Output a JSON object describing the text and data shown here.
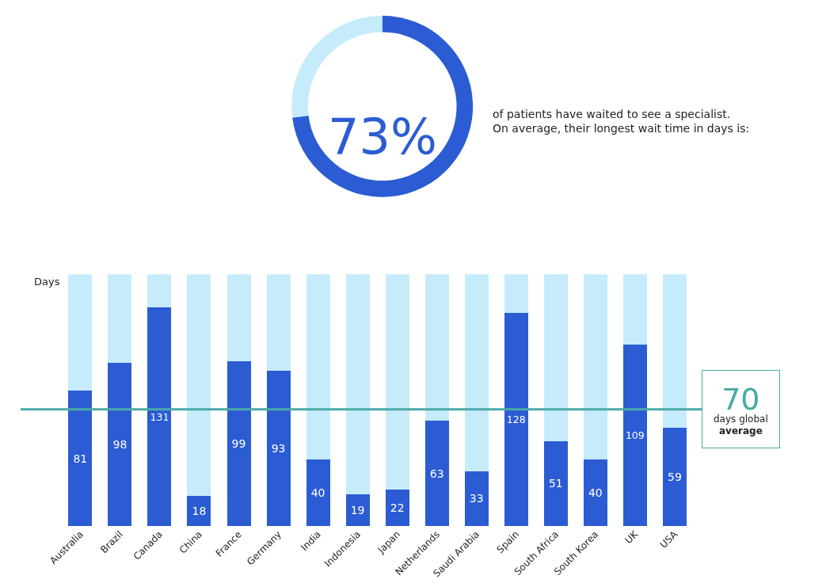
{
  "chart_data": [
    {
      "type": "donut",
      "categories": [
        null,
        null
      ],
      "values": [
        73,
        27
      ],
      "colors": [
        "#2b5cd3",
        "#c6ecfb"
      ],
      "annotations": [
        "73%",
        "of patients have waited to see a specialist.\nOn average, their longest wait time in days is:"
      ]
    },
    {
      "type": "bar",
      "stacked": true,
      "ylabel": "Days",
      "ylim": [
        0,
        151
      ],
      "tick_labels": "x",
      "categories": [
        "Australia",
        "Brazil",
        "Canada",
        "China",
        "France",
        "Germany",
        "India",
        "Indonesia",
        "Japan",
        "Netherlands",
        "Saudi Arabia",
        "Spain",
        "South Africa",
        "South Korea",
        "UK",
        "USA"
      ],
      "series": [
        {
          "color": "#2b5cd3",
          "values": [
            81,
            98,
            131,
            18,
            99,
            93,
            40,
            19,
            22,
            63,
            33,
            128,
            51,
            40,
            109,
            59
          ],
          "value_labels": [
            "81",
            "98",
            "131",
            "18",
            "99",
            "93",
            "40",
            "19",
            "22",
            "63",
            "33",
            "128",
            "51",
            "40",
            "109",
            "59"
          ]
        },
        {
          "color": "#c6ecfb",
          "values": [
            70,
            53,
            20,
            133,
            52,
            58,
            111,
            132,
            129,
            88,
            118,
            23,
            100,
            111,
            42,
            92
          ]
        }
      ],
      "ref_lines": [
        {
          "axis": "y",
          "value": 70,
          "label": "70 days global average",
          "color": "#4aaaa8"
        }
      ]
    }
  ]
}
